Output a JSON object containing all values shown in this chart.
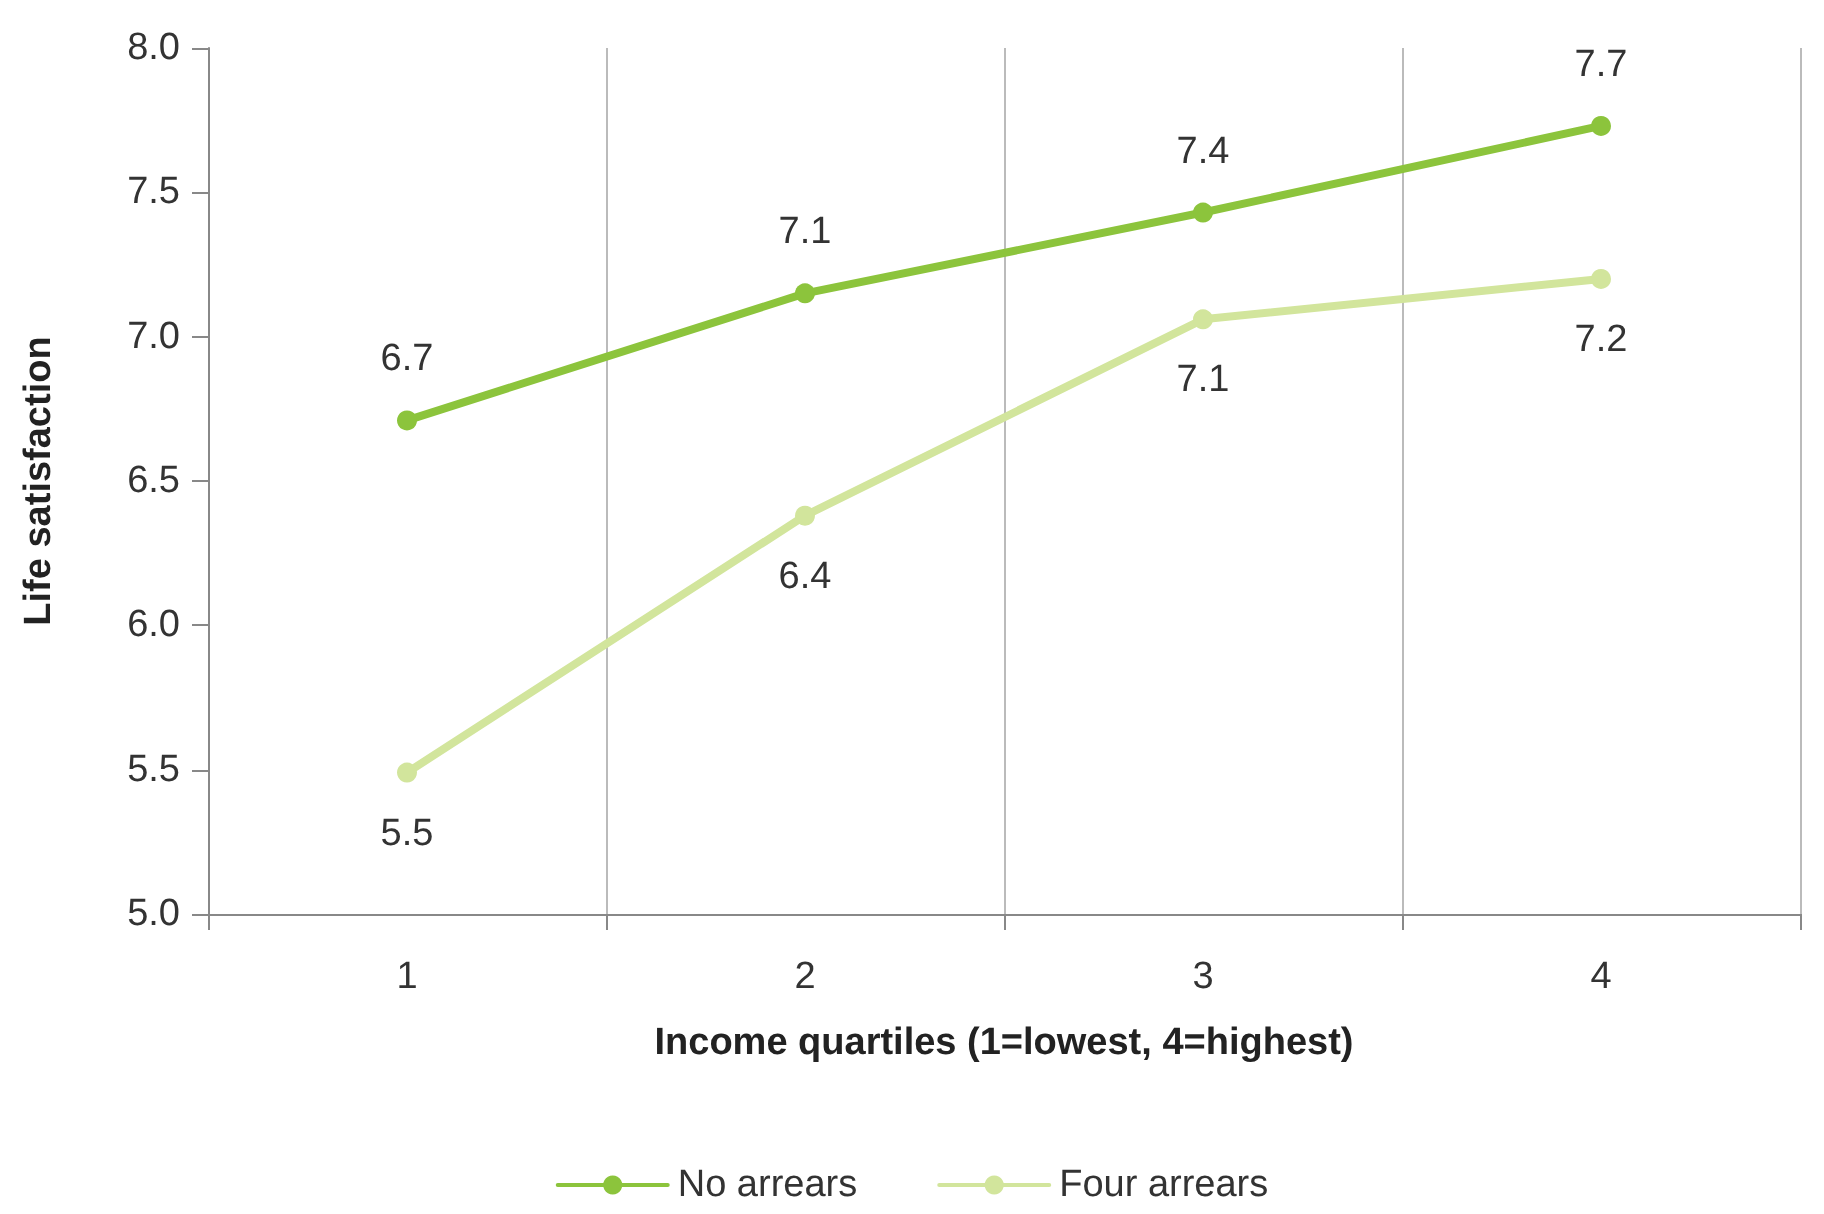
{
  "chart_data": {
    "type": "line",
    "xlabel": "Income quartiles (1=lowest, 4=highest)",
    "ylabel": "Life satisfaction",
    "categories": [
      "1",
      "2",
      "3",
      "4"
    ],
    "series": [
      {
        "name": "No arrears",
        "color": "#8cc43c",
        "values": [
          6.71,
          7.15,
          7.43,
          7.73
        ],
        "value_labels": [
          "6.7",
          "7.1",
          "7.4",
          "7.7"
        ]
      },
      {
        "name": "Four arrears",
        "color": "#d2e59c",
        "values": [
          5.49,
          6.38,
          7.06,
          7.2
        ],
        "value_labels": [
          "5.5",
          "6.4",
          "7.1",
          "7.2"
        ]
      }
    ],
    "ylim": [
      5,
      8
    ],
    "yticks": [
      {
        "value": 5,
        "label": "5.0"
      },
      5.5,
      {
        "value": 6,
        "label": "6.0"
      },
      6.5,
      {
        "value": 7,
        "label": "7.0"
      },
      7.5,
      {
        "value": 8,
        "label": "8.0"
      }
    ],
    "grid": "x",
    "legend": "bottom",
    "marker": "circle",
    "line_style": "solid"
  }
}
